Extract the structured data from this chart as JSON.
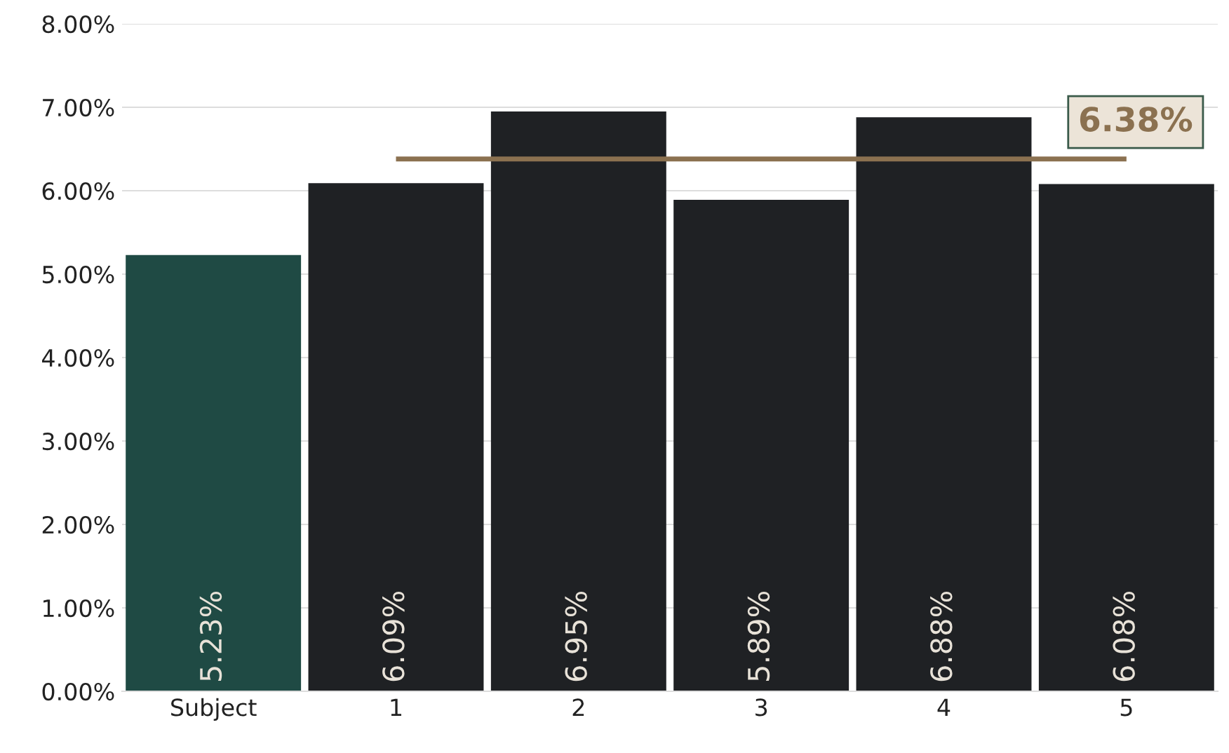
{
  "chart_data": {
    "type": "bar",
    "categories": [
      "Subject",
      "1",
      "2",
      "3",
      "4",
      "5"
    ],
    "values": [
      5.23,
      6.09,
      6.95,
      5.89,
      6.88,
      6.08
    ],
    "colors": [
      "#1f4a44",
      "#1f2124",
      "#1f2124",
      "#1f2124",
      "#1f2124",
      "#1f2124"
    ],
    "value_labels": [
      "5.23%",
      "6.09%",
      "6.95%",
      "5.89%",
      "6.88%",
      "6.08%"
    ],
    "ylim": [
      0,
      8
    ],
    "yticks": [
      {
        "value": 0,
        "label": "0.00%"
      },
      {
        "value": 1,
        "label": "1.00%"
      },
      {
        "value": 2,
        "label": "2.00%"
      },
      {
        "value": 3,
        "label": "3.00%"
      },
      {
        "value": 4,
        "label": "4.00%"
      },
      {
        "value": 5,
        "label": "5.00%"
      },
      {
        "value": 6,
        "label": "6.00%"
      },
      {
        "value": 7,
        "label": "7.00%"
      },
      {
        "value": 8,
        "label": "8.00%"
      }
    ],
    "ref_lines": [
      {
        "axis": "y",
        "value": 6.38,
        "label": "6.38%",
        "color": "#8b7150"
      }
    ],
    "grid": "y",
    "legend": false
  }
}
